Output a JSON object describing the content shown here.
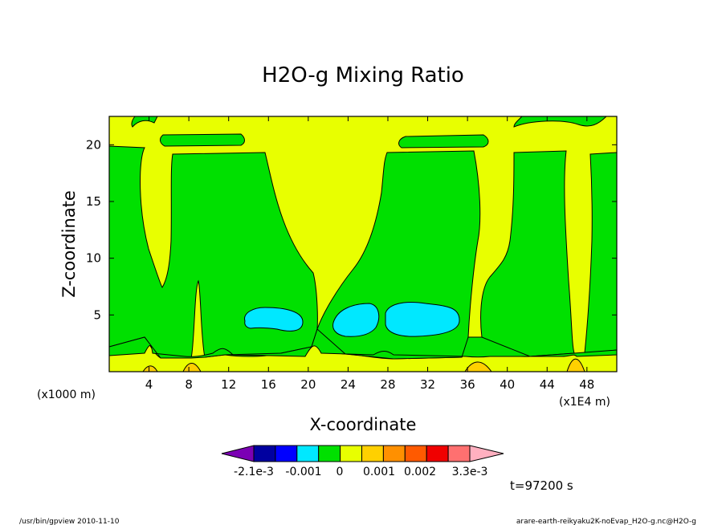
{
  "chart_data": {
    "type": "heatmap",
    "title": "H2O-g Mixing Ratio",
    "xlabel": "X-coordinate",
    "ylabel": "Z-coordinate",
    "x_unit_left": "(x1000 m)",
    "x_unit_right": "(x1E4 m)",
    "xlim": [
      0,
      51
    ],
    "ylim": [
      0,
      22.5
    ],
    "x_ticks": [
      4,
      8,
      12,
      16,
      20,
      24,
      28,
      32,
      36,
      40,
      44,
      48
    ],
    "y_ticks": [
      5,
      10,
      15,
      20
    ],
    "colorbar": {
      "colors": [
        "#7b00b4",
        "#0000a0",
        "#0000ff",
        "#00e8ff",
        "#00e000",
        "#e8ff00",
        "#ffd000",
        "#ff9000",
        "#ff5a00",
        "#f00000",
        "#ff7070",
        "#ffb0c0"
      ],
      "tick_labels": [
        "-2.1e-3",
        "-0.001",
        "0",
        "0.001",
        "0.002",
        "3.3e-3"
      ]
    },
    "regions": [
      {
        "name": "yellow",
        "color": "#e8ff00"
      },
      {
        "name": "green",
        "color": "#00e000"
      },
      {
        "name": "cyan",
        "color": "#00e8ff"
      },
      {
        "name": "orange",
        "color": "#ffd000"
      }
    ],
    "time_label": "t=97200 s"
  },
  "footer": {
    "left": "/usr/bin/gpview   2010-11-10",
    "right": "arare-earth-reikyaku2K-noEvap_H2O-g.nc@H2O-g"
  }
}
